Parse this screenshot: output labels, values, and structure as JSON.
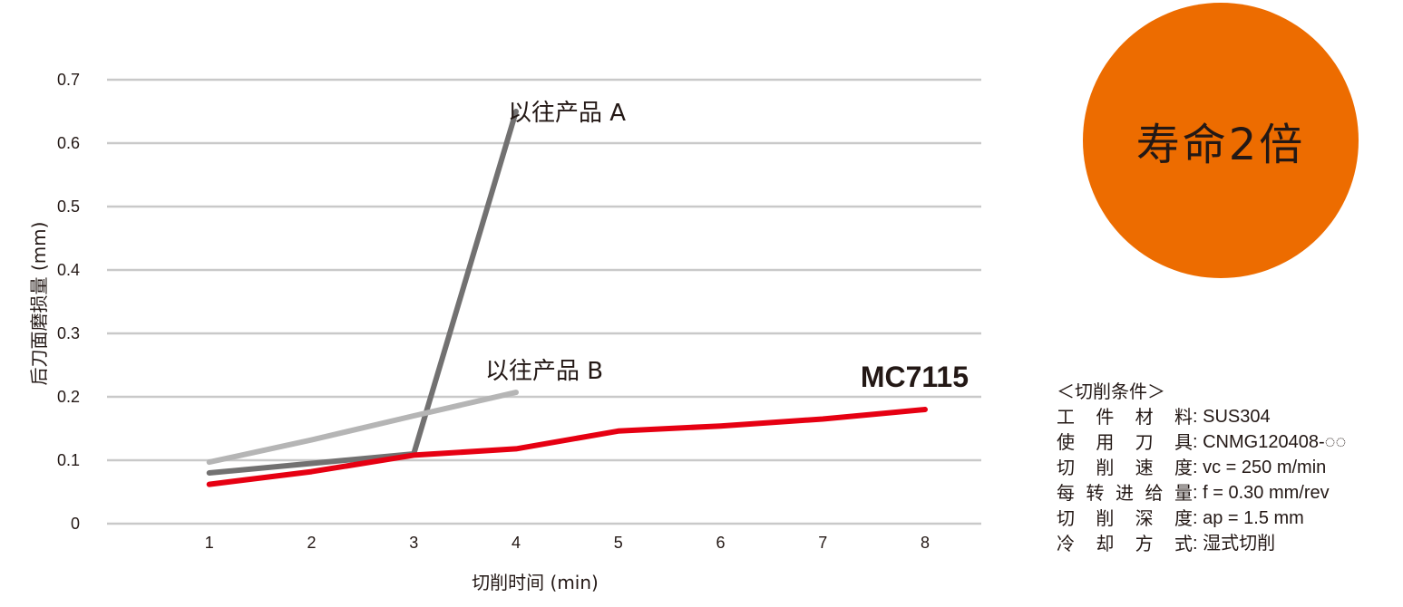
{
  "chart_data": {
    "type": "line",
    "xlabel": "切削时间 (min)",
    "ylabel": "后刀面磨损量 (mm)",
    "x_ticks": [
      1,
      2,
      3,
      4,
      5,
      6,
      7,
      8
    ],
    "y_ticks": [
      "0",
      "0.1",
      "0.2",
      "0.3",
      "0.4",
      "0.5",
      "0.6",
      "0.7"
    ],
    "xlim": [
      0,
      8.55
    ],
    "ylim": [
      0,
      0.7
    ],
    "grid": true,
    "series": [
      {
        "name": "以往产品 A",
        "color": "#727171",
        "points": [
          [
            1,
            0.08
          ],
          [
            2,
            0.095
          ],
          [
            3,
            0.11
          ],
          [
            4,
            0.65
          ]
        ]
      },
      {
        "name": "以往产品 B",
        "color": "#b5b5b5",
        "points": [
          [
            1,
            0.097
          ],
          [
            2,
            0.132
          ],
          [
            3,
            0.17
          ],
          [
            4,
            0.207
          ]
        ]
      },
      {
        "name": "MC7115",
        "color": "#e60012",
        "points": [
          [
            1,
            0.062
          ],
          [
            2,
            0.082
          ],
          [
            3,
            0.108
          ],
          [
            4,
            0.118
          ],
          [
            5,
            0.146
          ],
          [
            6,
            0.154
          ],
          [
            7,
            0.165
          ],
          [
            8,
            0.18
          ]
        ]
      }
    ]
  },
  "badge": {
    "text": "寿命2倍",
    "color": "#ed6c00"
  },
  "conditions": {
    "title": "＜切削条件＞",
    "rows": [
      {
        "chars": [
          "工",
          "件",
          "材",
          "料"
        ],
        "value": ": SUS304"
      },
      {
        "chars": [
          "使",
          "用",
          "刀",
          "具"
        ],
        "value": ": CNMG120408-◌◌"
      },
      {
        "chars": [
          "切",
          "削",
          "速",
          "度"
        ],
        "value": ": vc = 250 m/min"
      },
      {
        "chars": [
          "每",
          "转",
          "进",
          "给",
          "量"
        ],
        "value": ": f = 0.30 mm/rev"
      },
      {
        "chars": [
          "切",
          "削",
          "深",
          "度"
        ],
        "value": ": ap = 1.5 mm"
      },
      {
        "chars": [
          "冷",
          "却",
          "方",
          "式"
        ],
        "value": ": 湿式切削"
      }
    ]
  }
}
